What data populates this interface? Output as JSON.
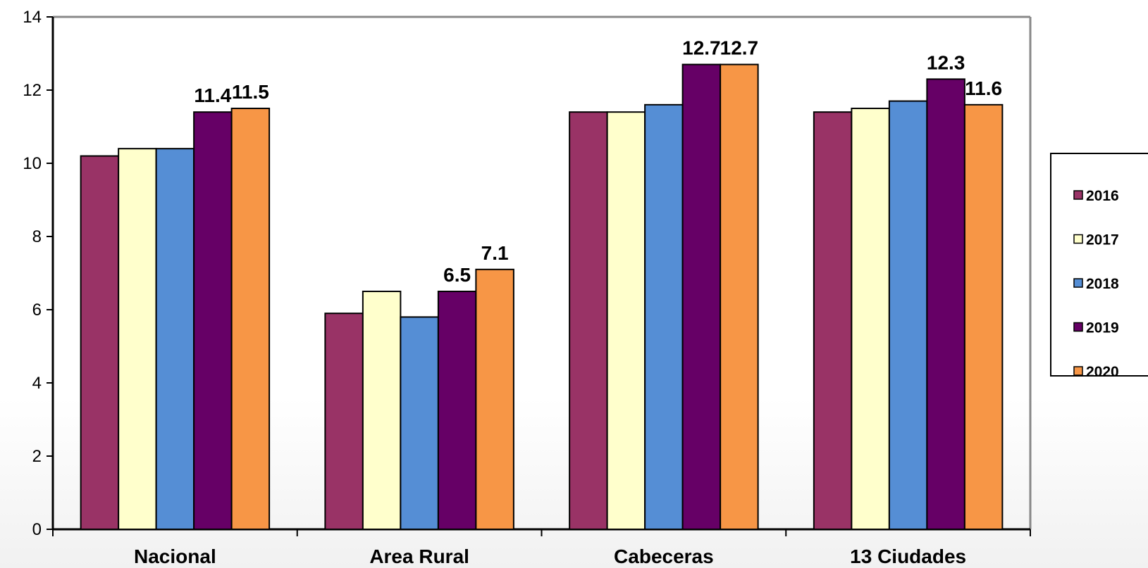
{
  "chart_data": {
    "type": "bar",
    "categories": [
      "Nacional",
      "Area Rural",
      "Cabeceras",
      "13 Ciudades"
    ],
    "series": [
      {
        "name": "2016",
        "values": [
          10.2,
          5.9,
          11.4,
          11.4
        ],
        "color": "#993366"
      },
      {
        "name": "2017",
        "values": [
          10.4,
          6.5,
          11.4,
          11.5
        ],
        "color": "#ffffcc"
      },
      {
        "name": "2018",
        "values": [
          10.4,
          5.8,
          11.6,
          11.7
        ],
        "color": "#558ed5"
      },
      {
        "name": "2019",
        "values": [
          11.4,
          6.5,
          12.7,
          12.3
        ],
        "color": "#660066"
      },
      {
        "name": "2020",
        "values": [
          11.5,
          7.1,
          12.7,
          11.6
        ],
        "color": "#f79646"
      }
    ],
    "data_labels": [
      {
        "category": 0,
        "series": 3,
        "text": "11.4"
      },
      {
        "category": 0,
        "series": 4,
        "text": "11.5"
      },
      {
        "category": 1,
        "series": 3,
        "text": "6.5"
      },
      {
        "category": 1,
        "series": 4,
        "text": "7.1"
      },
      {
        "category": 2,
        "series": 3,
        "text": "12.7"
      },
      {
        "category": 2,
        "series": 4,
        "text": "12.7"
      },
      {
        "category": 3,
        "series": 3,
        "text": "12.3"
      },
      {
        "category": 3,
        "series": 4,
        "text": "11.6"
      }
    ],
    "yticks": [
      "0",
      "2",
      "4",
      "6",
      "8",
      "10",
      "12",
      "14"
    ],
    "ylim": [
      0,
      14
    ],
    "title": "",
    "xlabel": "",
    "ylabel": "",
    "grid": false,
    "legend_position": "right"
  }
}
